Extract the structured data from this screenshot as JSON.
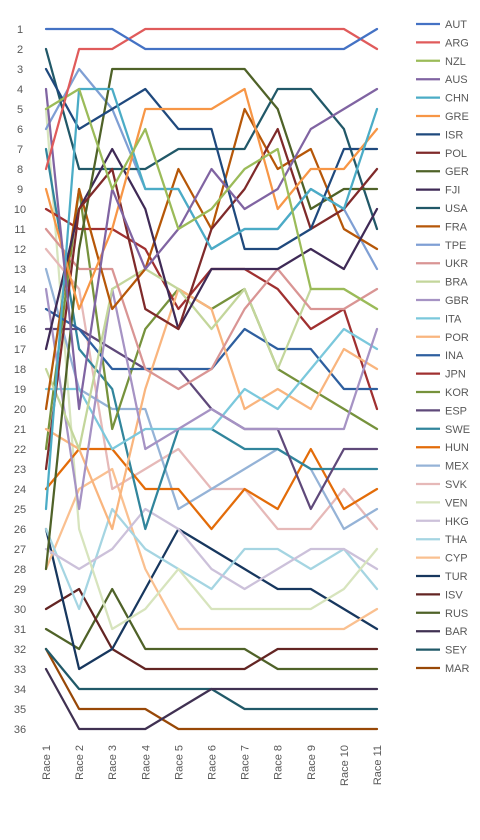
{
  "chart_data": {
    "type": "line",
    "y_inverted": true,
    "ylim": [
      1,
      36
    ],
    "categories": [
      "Race 1",
      "Race 2",
      "Race 3",
      "Race 4",
      "Race 5",
      "Race 6",
      "Race 7",
      "Race 8",
      "Race 9",
      "Race 10",
      "Race 11"
    ],
    "y_ticks": [
      "1",
      "2",
      "3",
      "4",
      "5",
      "6",
      "7",
      "8",
      "9",
      "10",
      "11",
      "12",
      "13",
      "14",
      "15",
      "16",
      "17",
      "18",
      "19",
      "20",
      "21",
      "22",
      "23",
      "24",
      "25",
      "26",
      "27",
      "28",
      "29",
      "30",
      "31",
      "32",
      "33",
      "34",
      "35",
      "36"
    ],
    "legend_position": "right",
    "series": [
      {
        "name": "AUT",
        "color": "#4472C4",
        "values": [
          1,
          1,
          1,
          2,
          2,
          2,
          2,
          2,
          2,
          2,
          1
        ]
      },
      {
        "name": "ARG",
        "color": "#E05B5B",
        "values": [
          8,
          2,
          2,
          1,
          1,
          1,
          1,
          1,
          1,
          1,
          2
        ]
      },
      {
        "name": "NZL",
        "color": "#9BBB59",
        "values": [
          5,
          4,
          9,
          6,
          11,
          10,
          8,
          7,
          14,
          14,
          15
        ]
      },
      {
        "name": "AUS",
        "color": "#8064A2",
        "values": [
          4,
          20,
          9,
          13,
          11,
          8,
          10,
          9,
          6,
          5,
          4
        ]
      },
      {
        "name": "CHN",
        "color": "#4BACC6",
        "values": [
          25,
          4,
          4,
          9,
          9,
          12,
          11,
          11,
          9,
          10,
          5
        ]
      },
      {
        "name": "GRE",
        "color": "#F79646",
        "values": [
          9,
          15,
          11,
          5,
          5,
          5,
          4,
          10,
          8,
          8,
          6
        ]
      },
      {
        "name": "ISR",
        "color": "#1F497D",
        "values": [
          3,
          6,
          5,
          4,
          6,
          6,
          12,
          12,
          11,
          7,
          7
        ]
      },
      {
        "name": "POL",
        "color": "#7F2A2A",
        "values": [
          23,
          10,
          8,
          15,
          16,
          11,
          9,
          6,
          11,
          10,
          8
        ]
      },
      {
        "name": "GER",
        "color": "#4F6228",
        "values": [
          28,
          12,
          3,
          3,
          3,
          3,
          3,
          5,
          10,
          9,
          9
        ]
      },
      {
        "name": "FJI",
        "color": "#3F2A56",
        "values": [
          17,
          10,
          7,
          10,
          16,
          13,
          13,
          13,
          12,
          13,
          10
        ]
      },
      {
        "name": "USA",
        "color": "#215868",
        "values": [
          2,
          8,
          8,
          8,
          7,
          7,
          7,
          4,
          4,
          6,
          11
        ]
      },
      {
        "name": "FRA",
        "color": "#B65708",
        "values": [
          20,
          9,
          15,
          13,
          8,
          11,
          5,
          8,
          7,
          11,
          12
        ]
      },
      {
        "name": "TPE",
        "color": "#7F9FD4",
        "values": [
          6,
          3,
          5,
          9,
          9,
          12,
          11,
          11,
          9,
          10,
          13
        ]
      },
      {
        "name": "UKR",
        "color": "#D99594",
        "values": [
          11,
          13,
          13,
          18,
          19,
          18,
          15,
          13,
          15,
          15,
          14
        ]
      },
      {
        "name": "BRA",
        "color": "#C3D69B",
        "values": [
          18,
          22,
          14,
          13,
          14,
          16,
          14,
          18,
          14,
          14,
          15
        ]
      },
      {
        "name": "GBR",
        "color": "#A693C4",
        "values": [
          14,
          25,
          14,
          22,
          21,
          20,
          21,
          21,
          21,
          21,
          16
        ]
      },
      {
        "name": "ITA",
        "color": "#7BC8DC",
        "values": [
          19,
          19,
          22,
          21,
          21,
          21,
          19,
          20,
          18,
          16,
          17
        ]
      },
      {
        "name": "POR",
        "color": "#F9B57E",
        "values": [
          21,
          22,
          26,
          19,
          14,
          15,
          20,
          19,
          20,
          17,
          18
        ]
      },
      {
        "name": "INA",
        "color": "#2E5F9F",
        "values": [
          15,
          16,
          18,
          18,
          18,
          18,
          16,
          17,
          17,
          19,
          19
        ]
      },
      {
        "name": "JPN",
        "color": "#A03030",
        "values": [
          10,
          11,
          11,
          12,
          15,
          13,
          13,
          14,
          16,
          15,
          20
        ]
      },
      {
        "name": "KOR",
        "color": "#76923C",
        "values": [
          22,
          9,
          21,
          16,
          14,
          15,
          14,
          18,
          19,
          20,
          21
        ]
      },
      {
        "name": "ESP",
        "color": "#5F497A",
        "values": [
          16,
          16,
          17,
          18,
          18,
          20,
          21,
          21,
          25,
          22,
          22
        ]
      },
      {
        "name": "SWE",
        "color": "#31859C",
        "values": [
          7,
          17,
          19,
          26,
          21,
          21,
          22,
          22,
          23,
          23,
          23
        ]
      },
      {
        "name": "HUN",
        "color": "#E36C09",
        "values": [
          24,
          22,
          22,
          24,
          24,
          26,
          24,
          25,
          22,
          25,
          24
        ]
      },
      {
        "name": "MEX",
        "color": "#95B3D7",
        "values": [
          13,
          19,
          20,
          20,
          25,
          24,
          23,
          22,
          23,
          26,
          25
        ]
      },
      {
        "name": "SVK",
        "color": "#E6B9B8",
        "values": [
          12,
          14,
          24,
          23,
          22,
          24,
          24,
          26,
          26,
          24,
          26
        ]
      },
      {
        "name": "VEN",
        "color": "#D7E4BD",
        "values": [
          5,
          26,
          31,
          30,
          28,
          30,
          30,
          30,
          30,
          29,
          27
        ]
      },
      {
        "name": "HKG",
        "color": "#CCC1DA",
        "values": [
          27,
          28,
          27,
          25,
          26,
          28,
          29,
          28,
          27,
          27,
          28
        ]
      },
      {
        "name": "THA",
        "color": "#A5D5E2",
        "values": [
          26,
          30,
          25,
          27,
          28,
          29,
          27,
          27,
          28,
          27,
          29
        ]
      },
      {
        "name": "CYP",
        "color": "#FAC090",
        "values": [
          28,
          24,
          23,
          28,
          31,
          31,
          31,
          31,
          31,
          31,
          30
        ]
      },
      {
        "name": "TUR",
        "color": "#17375E",
        "values": [
          26,
          33,
          32,
          29,
          26,
          27,
          28,
          29,
          29,
          30,
          31
        ]
      },
      {
        "name": "ISV",
        "color": "#632523",
        "values": [
          30,
          29,
          32,
          33,
          33,
          33,
          33,
          32,
          32,
          32,
          32
        ]
      },
      {
        "name": "RUS",
        "color": "#4F6228",
        "values": [
          31,
          32,
          29,
          32,
          32,
          32,
          32,
          33,
          33,
          33,
          33
        ]
      },
      {
        "name": "BAR",
        "color": "#403152",
        "values": [
          33,
          36,
          36,
          36,
          35,
          34,
          34,
          34,
          34,
          34,
          34
        ]
      },
      {
        "name": "SEY",
        "color": "#215968",
        "values": [
          32,
          34,
          34,
          34,
          34,
          34,
          35,
          35,
          35,
          35,
          35
        ]
      },
      {
        "name": "MAR",
        "color": "#984807",
        "values": [
          32,
          35,
          35,
          35,
          36,
          36,
          36,
          36,
          36,
          36,
          36
        ]
      }
    ]
  }
}
